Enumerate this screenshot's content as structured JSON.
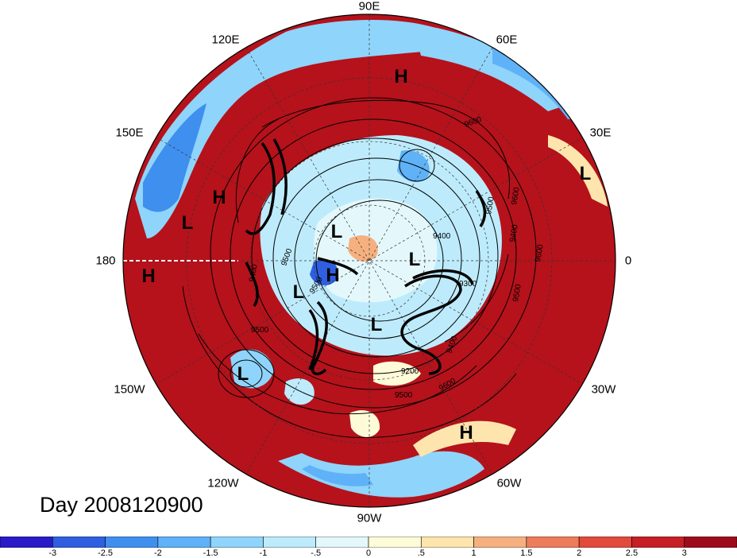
{
  "title": "Day 2008120900",
  "longitude_labels": [
    "90E",
    "60E",
    "30E",
    "0",
    "30W",
    "60W",
    "90W",
    "120W",
    "150W",
    "180",
    "150E",
    "120E"
  ],
  "pressure_systems": [
    "H",
    "H",
    "H",
    "H",
    "H",
    "H",
    "L",
    "L",
    "L",
    "L",
    "L",
    "L",
    "L",
    "L"
  ],
  "contour_labels": [
    "9600",
    "9500",
    "9400",
    "9600",
    "9300",
    "9500",
    "9400",
    "9500",
    "9600",
    "9500",
    "9200",
    "9600",
    "9500",
    "9400",
    "9500",
    "9400"
  ],
  "colorbar": {
    "ticks": [
      "-3",
      "-2.5",
      "-2",
      "-1.5",
      "-1",
      "-.5",
      "0",
      ".5",
      "1",
      "1.5",
      "2",
      "2.5",
      "3"
    ],
    "colors": [
      "#2a1bc8",
      "#2f5fe0",
      "#3f8fef",
      "#5fb2f7",
      "#8fd4fb",
      "#bdebfc",
      "#e4f8fb",
      "#fefbd8",
      "#fde5ad",
      "#f6b07f",
      "#ee7b5a",
      "#e24a3c",
      "#c61f25",
      "#9e0c1b"
    ]
  },
  "colors": {
    "warm_anomaly": "#b5121b",
    "cold_anomaly": "#2f6ee0",
    "neutral": "#fdf6dc"
  }
}
